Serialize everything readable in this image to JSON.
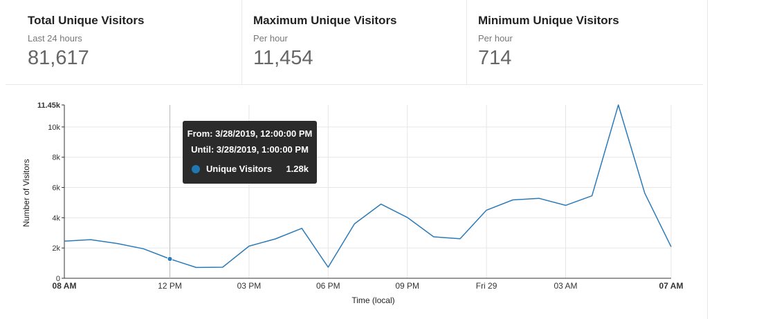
{
  "stats": [
    {
      "title": "Total Unique Visitors",
      "subtitle": "Last 24 hours",
      "value": "81,617"
    },
    {
      "title": "Maximum Unique Visitors",
      "subtitle": "Per hour",
      "value": "11,454"
    },
    {
      "title": "Minimum Unique Visitors",
      "subtitle": "Per hour",
      "value": "714"
    }
  ],
  "tooltip": {
    "from": "From: 3/28/2019, 12:00:00 PM",
    "until": "Until: 3/28/2019, 1:00:00 PM",
    "series_name": "Unique Visitors",
    "value": "1.28k"
  },
  "chart_data": {
    "type": "line",
    "xlabel": "Time (local)",
    "ylabel": "Number of Visitors",
    "ylim": [
      0,
      11454
    ],
    "grid": true,
    "line_color": "#2a7ab8",
    "x": [
      "3/28 08:00",
      "3/28 09:00",
      "3/28 10:00",
      "3/28 11:00",
      "3/28 12:00",
      "3/28 13:00",
      "3/28 14:00",
      "3/28 15:00",
      "3/28 16:00",
      "3/28 17:00",
      "3/28 18:00",
      "3/28 19:00",
      "3/28 20:00",
      "3/28 21:00",
      "3/28 22:00",
      "3/28 23:00",
      "3/29 00:00",
      "3/29 01:00",
      "3/29 02:00",
      "3/29 03:00",
      "3/29 04:00",
      "3/29 05:00",
      "3/29 06:00",
      "3/29 07:00"
    ],
    "series": [
      {
        "name": "Unique Visitors",
        "values": [
          2450,
          2550,
          2300,
          1950,
          1280,
          714,
          730,
          2120,
          2600,
          3300,
          730,
          3600,
          4900,
          4020,
          2740,
          2610,
          4500,
          5180,
          5280,
          4820,
          5450,
          11454,
          5620,
          2080
        ]
      }
    ],
    "highlighted_point": 4,
    "y_ticks": [
      {
        "value": 0,
        "label": "0"
      },
      {
        "value": 2000,
        "label": "2k"
      },
      {
        "value": 4000,
        "label": "4k"
      },
      {
        "value": 6000,
        "label": "6k"
      },
      {
        "value": 8000,
        "label": "8k"
      },
      {
        "value": 10000,
        "label": "10k"
      },
      {
        "value": 11454,
        "label": "11.45k",
        "bold": true
      }
    ],
    "x_ticks": [
      {
        "index": 0,
        "label": "08 AM",
        "bold": true
      },
      {
        "index": 4,
        "label": "12 PM"
      },
      {
        "index": 7,
        "label": "03 PM"
      },
      {
        "index": 10,
        "label": "06 PM"
      },
      {
        "index": 13,
        "label": "09 PM"
      },
      {
        "index": 16,
        "label": "Fri 29"
      },
      {
        "index": 19,
        "label": "03 AM"
      },
      {
        "index": 23,
        "label": "07 AM",
        "bold": true
      }
    ]
  }
}
